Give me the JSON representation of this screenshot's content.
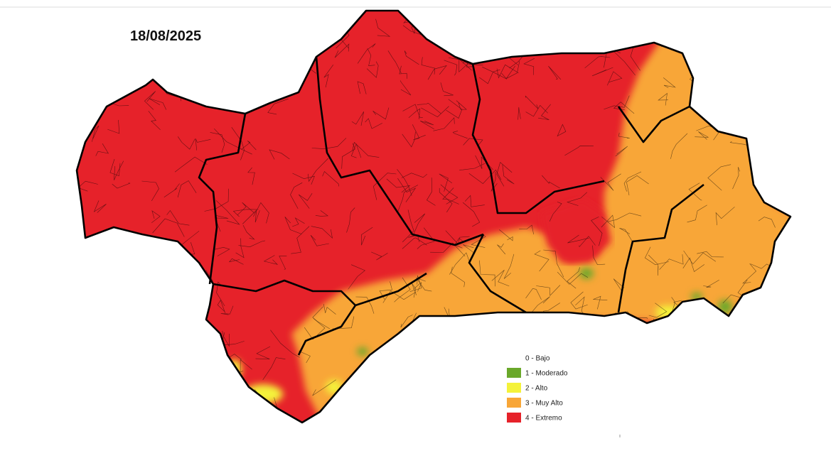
{
  "date": "18/08/2025",
  "legend": [
    {
      "label": "0 - Bajo",
      "color": "#ffffff"
    },
    {
      "label": "1 - Moderado",
      "color": "#6aa82a"
    },
    {
      "label": "2 - Alto",
      "color": "#f4f23a"
    },
    {
      "label": "3 - Muy Alto",
      "color": "#f8a637"
    },
    {
      "label": "4 - Extremo",
      "color": "#e6222a"
    }
  ]
}
